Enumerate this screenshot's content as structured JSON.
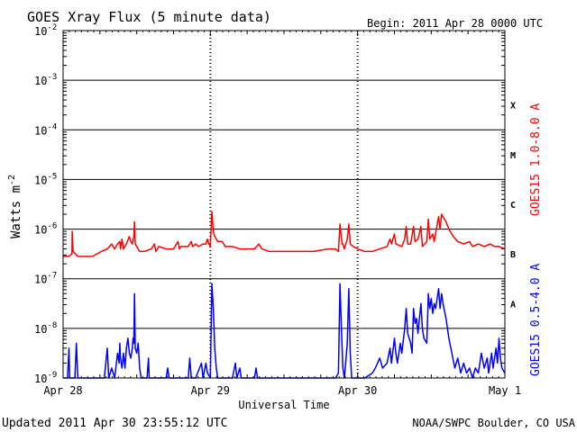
{
  "chart_data": {
    "type": "line",
    "title": "GOES Xray Flux (5 minute data)",
    "begin_text": "Begin:  2011 Apr 28 0000 UTC",
    "xlabel": "Universal Time",
    "ylabel_main": "Watts m",
    "ylabel_exp": "-2",
    "footer_left": "Updated 2011 Apr 30 23:55:12 UTC",
    "footer_right": "NOAA/SWPC Boulder, CO USA",
    "x_range_days": [
      0,
      3
    ],
    "x_ticks": [
      {
        "day": 0,
        "label": "Apr 28"
      },
      {
        "day": 1,
        "label": "Apr 29"
      },
      {
        "day": 2,
        "label": "Apr 30"
      },
      {
        "day": 3,
        "label": "May 1"
      }
    ],
    "y_scale": "log",
    "y_range_exp": [
      -9,
      -2
    ],
    "y_ticks": [
      {
        "exp": -2,
        "label": "10",
        "sup": "-2"
      },
      {
        "exp": -3,
        "label": "10",
        "sup": "-3"
      },
      {
        "exp": -4,
        "label": "10",
        "sup": "-4"
      },
      {
        "exp": -5,
        "label": "10",
        "sup": "-5"
      },
      {
        "exp": -6,
        "label": "10",
        "sup": "-6"
      },
      {
        "exp": -7,
        "label": "10",
        "sup": "-7"
      },
      {
        "exp": -8,
        "label": "10",
        "sup": "-8"
      },
      {
        "exp": -9,
        "label": "10",
        "sup": "-9"
      }
    ],
    "flare_classes": [
      {
        "label": "X",
        "exp": -3.5
      },
      {
        "label": "M",
        "exp": -4.5
      },
      {
        "label": "C",
        "exp": -5.5
      },
      {
        "label": "B",
        "exp": -6.5
      },
      {
        "label": "A",
        "exp": -7.5
      }
    ],
    "grid": true,
    "series": [
      {
        "name": "GOES15 1.0-8.0 A",
        "color": "#ff0000",
        "points": [
          [
            0.0,
            -6.55
          ],
          [
            0.04,
            -6.55
          ],
          [
            0.06,
            -6.5
          ],
          [
            0.062,
            -6.05
          ],
          [
            0.068,
            -6.45
          ],
          [
            0.1,
            -6.55
          ],
          [
            0.2,
            -6.55
          ],
          [
            0.26,
            -6.45
          ],
          [
            0.3,
            -6.4
          ],
          [
            0.33,
            -6.3
          ],
          [
            0.35,
            -6.4
          ],
          [
            0.37,
            -6.3
          ],
          [
            0.385,
            -6.25
          ],
          [
            0.39,
            -6.4
          ],
          [
            0.4,
            -6.2
          ],
          [
            0.41,
            -6.4
          ],
          [
            0.43,
            -6.3
          ],
          [
            0.45,
            -6.15
          ],
          [
            0.46,
            -6.25
          ],
          [
            0.47,
            -6.3
          ],
          [
            0.48,
            -6.15
          ],
          [
            0.485,
            -5.85
          ],
          [
            0.49,
            -6.3
          ],
          [
            0.5,
            -6.35
          ],
          [
            0.52,
            -6.45
          ],
          [
            0.55,
            -6.45
          ],
          [
            0.6,
            -6.4
          ],
          [
            0.62,
            -6.3
          ],
          [
            0.63,
            -6.45
          ],
          [
            0.65,
            -6.35
          ],
          [
            0.7,
            -6.4
          ],
          [
            0.75,
            -6.4
          ],
          [
            0.78,
            -6.25
          ],
          [
            0.79,
            -6.4
          ],
          [
            0.8,
            -6.35
          ],
          [
            0.85,
            -6.35
          ],
          [
            0.87,
            -6.25
          ],
          [
            0.88,
            -6.35
          ],
          [
            0.9,
            -6.3
          ],
          [
            0.92,
            -6.35
          ],
          [
            0.95,
            -6.3
          ],
          [
            0.97,
            -6.3
          ],
          [
            0.98,
            -6.2
          ],
          [
            0.99,
            -6.3
          ],
          [
            1.0,
            -6.35
          ],
          [
            1.01,
            -5.65
          ],
          [
            1.02,
            -6.05
          ],
          [
            1.03,
            -6.15
          ],
          [
            1.05,
            -6.25
          ],
          [
            1.08,
            -6.25
          ],
          [
            1.1,
            -6.35
          ],
          [
            1.15,
            -6.35
          ],
          [
            1.2,
            -6.4
          ],
          [
            1.25,
            -6.4
          ],
          [
            1.3,
            -6.4
          ],
          [
            1.33,
            -6.3
          ],
          [
            1.35,
            -6.4
          ],
          [
            1.4,
            -6.45
          ],
          [
            1.45,
            -6.45
          ],
          [
            1.5,
            -6.45
          ],
          [
            1.6,
            -6.45
          ],
          [
            1.7,
            -6.45
          ],
          [
            1.8,
            -6.4
          ],
          [
            1.85,
            -6.4
          ],
          [
            1.87,
            -6.45
          ],
          [
            1.88,
            -5.9
          ],
          [
            1.895,
            -6.3
          ],
          [
            1.9,
            -6.3
          ],
          [
            1.91,
            -6.4
          ],
          [
            1.93,
            -6.2
          ],
          [
            1.94,
            -5.9
          ],
          [
            1.95,
            -6.3
          ],
          [
            1.97,
            -6.35
          ],
          [
            2.0,
            -6.4
          ],
          [
            2.05,
            -6.45
          ],
          [
            2.1,
            -6.45
          ],
          [
            2.15,
            -6.4
          ],
          [
            2.2,
            -6.35
          ],
          [
            2.22,
            -6.2
          ],
          [
            2.23,
            -6.3
          ],
          [
            2.25,
            -6.1
          ],
          [
            2.26,
            -6.3
          ],
          [
            2.3,
            -6.35
          ],
          [
            2.32,
            -6.2
          ],
          [
            2.33,
            -5.95
          ],
          [
            2.34,
            -6.3
          ],
          [
            2.36,
            -6.3
          ],
          [
            2.38,
            -5.95
          ],
          [
            2.39,
            -6.25
          ],
          [
            2.41,
            -6.2
          ],
          [
            2.43,
            -5.95
          ],
          [
            2.44,
            -6.35
          ],
          [
            2.47,
            -6.25
          ],
          [
            2.48,
            -5.8
          ],
          [
            2.49,
            -6.2
          ],
          [
            2.51,
            -6.1
          ],
          [
            2.52,
            -6.25
          ],
          [
            2.55,
            -5.75
          ],
          [
            2.56,
            -6.0
          ],
          [
            2.57,
            -5.7
          ],
          [
            2.58,
            -5.75
          ],
          [
            2.6,
            -5.85
          ],
          [
            2.62,
            -6.0
          ],
          [
            2.65,
            -6.15
          ],
          [
            2.68,
            -6.25
          ],
          [
            2.72,
            -6.3
          ],
          [
            2.76,
            -6.25
          ],
          [
            2.78,
            -6.35
          ],
          [
            2.82,
            -6.3
          ],
          [
            2.86,
            -6.35
          ],
          [
            2.9,
            -6.3
          ],
          [
            2.93,
            -6.35
          ],
          [
            2.96,
            -6.35
          ],
          [
            3.0,
            -6.4
          ]
        ]
      },
      {
        "name": "GOES15 0.5-4.0 A",
        "color": "#0000ff",
        "points": [
          [
            0.0,
            -9.0
          ],
          [
            0.03,
            -9.0
          ],
          [
            0.04,
            -8.4
          ],
          [
            0.045,
            -9.0
          ],
          [
            0.08,
            -9.0
          ],
          [
            0.09,
            -8.3
          ],
          [
            0.1,
            -9.0
          ],
          [
            0.2,
            -9.0
          ],
          [
            0.28,
            -9.0
          ],
          [
            0.3,
            -8.4
          ],
          [
            0.31,
            -9.0
          ],
          [
            0.33,
            -8.8
          ],
          [
            0.35,
            -9.0
          ],
          [
            0.37,
            -8.5
          ],
          [
            0.38,
            -8.7
          ],
          [
            0.385,
            -8.3
          ],
          [
            0.39,
            -8.6
          ],
          [
            0.4,
            -8.8
          ],
          [
            0.41,
            -8.5
          ],
          [
            0.42,
            -8.8
          ],
          [
            0.43,
            -8.4
          ],
          [
            0.44,
            -8.2
          ],
          [
            0.45,
            -8.5
          ],
          [
            0.46,
            -8.6
          ],
          [
            0.47,
            -8.4
          ],
          [
            0.475,
            -8.2
          ],
          [
            0.48,
            -8.3
          ],
          [
            0.485,
            -7.3
          ],
          [
            0.49,
            -8.4
          ],
          [
            0.5,
            -8.5
          ],
          [
            0.51,
            -8.3
          ],
          [
            0.52,
            -8.8
          ],
          [
            0.53,
            -9.0
          ],
          [
            0.57,
            -9.0
          ],
          [
            0.58,
            -8.6
          ],
          [
            0.585,
            -9.0
          ],
          [
            0.65,
            -9.0
          ],
          [
            0.7,
            -9.0
          ],
          [
            0.71,
            -8.8
          ],
          [
            0.72,
            -9.0
          ],
          [
            0.8,
            -9.0
          ],
          [
            0.85,
            -9.0
          ],
          [
            0.86,
            -8.6
          ],
          [
            0.87,
            -9.0
          ],
          [
            0.9,
            -9.0
          ],
          [
            0.94,
            -8.7
          ],
          [
            0.95,
            -9.0
          ],
          [
            0.97,
            -8.7
          ],
          [
            0.98,
            -8.9
          ],
          [
            1.0,
            -9.0
          ],
          [
            1.01,
            -7.1
          ],
          [
            1.02,
            -7.6
          ],
          [
            1.03,
            -8.4
          ],
          [
            1.04,
            -8.8
          ],
          [
            1.05,
            -9.0
          ],
          [
            1.1,
            -9.0
          ],
          [
            1.15,
            -9.0
          ],
          [
            1.17,
            -8.7
          ],
          [
            1.18,
            -9.0
          ],
          [
            1.2,
            -8.8
          ],
          [
            1.21,
            -9.0
          ],
          [
            1.25,
            -9.0
          ],
          [
            1.3,
            -9.0
          ],
          [
            1.31,
            -8.8
          ],
          [
            1.32,
            -9.0
          ],
          [
            1.4,
            -9.0
          ],
          [
            1.5,
            -9.0
          ],
          [
            1.6,
            -9.0
          ],
          [
            1.7,
            -9.0
          ],
          [
            1.8,
            -9.0
          ],
          [
            1.85,
            -9.0
          ],
          [
            1.87,
            -8.9
          ],
          [
            1.88,
            -7.1
          ],
          [
            1.89,
            -8.0
          ],
          [
            1.9,
            -8.8
          ],
          [
            1.91,
            -9.0
          ],
          [
            1.93,
            -8.3
          ],
          [
            1.94,
            -7.2
          ],
          [
            1.95,
            -8.5
          ],
          [
            1.96,
            -9.0
          ],
          [
            2.0,
            -9.0
          ],
          [
            2.05,
            -9.0
          ],
          [
            2.1,
            -8.9
          ],
          [
            2.12,
            -8.8
          ],
          [
            2.15,
            -8.6
          ],
          [
            2.17,
            -8.8
          ],
          [
            2.2,
            -8.7
          ],
          [
            2.22,
            -8.4
          ],
          [
            2.23,
            -8.7
          ],
          [
            2.25,
            -8.2
          ],
          [
            2.26,
            -8.5
          ],
          [
            2.27,
            -8.7
          ],
          [
            2.29,
            -8.3
          ],
          [
            2.3,
            -8.5
          ],
          [
            2.32,
            -8.0
          ],
          [
            2.33,
            -7.6
          ],
          [
            2.34,
            -8.1
          ],
          [
            2.36,
            -8.3
          ],
          [
            2.37,
            -8.5
          ],
          [
            2.38,
            -7.6
          ],
          [
            2.39,
            -7.9
          ],
          [
            2.4,
            -7.8
          ],
          [
            2.41,
            -8.1
          ],
          [
            2.43,
            -7.5
          ],
          [
            2.44,
            -8.0
          ],
          [
            2.45,
            -8.2
          ],
          [
            2.47,
            -8.3
          ],
          [
            2.48,
            -7.3
          ],
          [
            2.49,
            -7.6
          ],
          [
            2.5,
            -7.4
          ],
          [
            2.51,
            -7.7
          ],
          [
            2.52,
            -7.5
          ],
          [
            2.53,
            -7.6
          ],
          [
            2.55,
            -7.2
          ],
          [
            2.56,
            -7.6
          ],
          [
            2.57,
            -7.3
          ],
          [
            2.58,
            -7.5
          ],
          [
            2.6,
            -7.8
          ],
          [
            2.62,
            -8.2
          ],
          [
            2.64,
            -8.5
          ],
          [
            2.66,
            -8.8
          ],
          [
            2.68,
            -8.6
          ],
          [
            2.7,
            -8.9
          ],
          [
            2.72,
            -8.7
          ],
          [
            2.74,
            -8.9
          ],
          [
            2.76,
            -8.8
          ],
          [
            2.78,
            -9.0
          ],
          [
            2.8,
            -8.8
          ],
          [
            2.82,
            -8.9
          ],
          [
            2.84,
            -8.5
          ],
          [
            2.86,
            -8.8
          ],
          [
            2.88,
            -8.6
          ],
          [
            2.89,
            -8.9
          ],
          [
            2.91,
            -8.5
          ],
          [
            2.92,
            -8.8
          ],
          [
            2.94,
            -8.4
          ],
          [
            2.95,
            -8.7
          ],
          [
            2.96,
            -8.2
          ],
          [
            2.97,
            -8.6
          ],
          [
            2.98,
            -8.8
          ],
          [
            3.0,
            -8.9
          ]
        ]
      }
    ]
  }
}
